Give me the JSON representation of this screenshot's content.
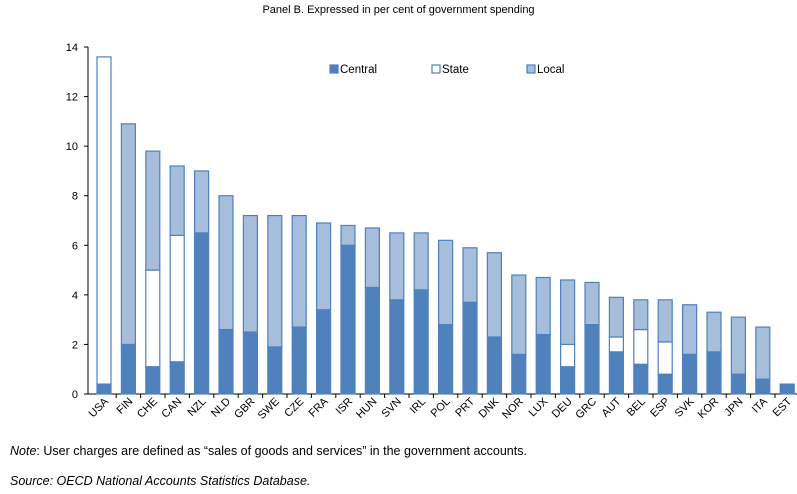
{
  "chart_data": {
    "type": "bar",
    "stacked": true,
    "title": "Panel B. Expressed in per cent of government spending",
    "categories": [
      "USA",
      "FIN",
      "CHE",
      "CAN",
      "NZL",
      "NLD",
      "GBR",
      "SWE",
      "CZE",
      "FRA",
      "ISR",
      "HUN",
      "SVN",
      "IRL",
      "POL",
      "PRT",
      "DNK",
      "NOR",
      "LUX",
      "DEU",
      "GRC",
      "AUT",
      "BEL",
      "ESP",
      "SVK",
      "KOR",
      "JPN",
      "ITA",
      "EST"
    ],
    "series": [
      {
        "name": "Central",
        "values": [
          0.4,
          2.0,
          1.1,
          1.3,
          6.5,
          2.6,
          2.5,
          1.9,
          2.7,
          3.4,
          6.0,
          4.3,
          3.8,
          4.2,
          2.8,
          3.7,
          2.3,
          1.6,
          2.4,
          1.1,
          2.8,
          1.7,
          1.2,
          0.8,
          1.6,
          1.7,
          0.8,
          0.6,
          0.4
        ]
      },
      {
        "name": "State",
        "values": [
          13.2,
          0,
          3.9,
          5.1,
          0,
          0,
          0,
          0,
          0,
          0,
          0,
          0,
          0,
          0,
          0,
          0,
          0,
          0,
          0,
          0.9,
          0,
          0.6,
          1.4,
          1.3,
          0,
          0,
          0,
          0,
          0
        ]
      },
      {
        "name": "Local",
        "values": [
          0,
          8.9,
          4.8,
          2.8,
          2.5,
          5.4,
          4.7,
          5.3,
          4.5,
          3.5,
          0.8,
          2.4,
          2.7,
          2.3,
          3.4,
          2.2,
          3.4,
          3.2,
          2.3,
          2.6,
          1.7,
          1.6,
          1.2,
          1.7,
          2.0,
          1.6,
          2.3,
          2.1,
          0
        ]
      }
    ],
    "ylim": [
      0,
      14
    ],
    "yticks": [
      0,
      2,
      4,
      6,
      8,
      10,
      12,
      14
    ],
    "xlabel": "",
    "ylabel": "",
    "grid": false,
    "legend_position": "top-center",
    "colors": {
      "Central": "#4f81bd",
      "State": "#ffffff",
      "Local": "#a6bddb",
      "edge": "#4f81bd"
    }
  },
  "note": {
    "label": "Note",
    "text": ": User charges are defined as “sales of goods and services” in the government accounts."
  },
  "source": "Source: OECD National Accounts Statistics Database."
}
